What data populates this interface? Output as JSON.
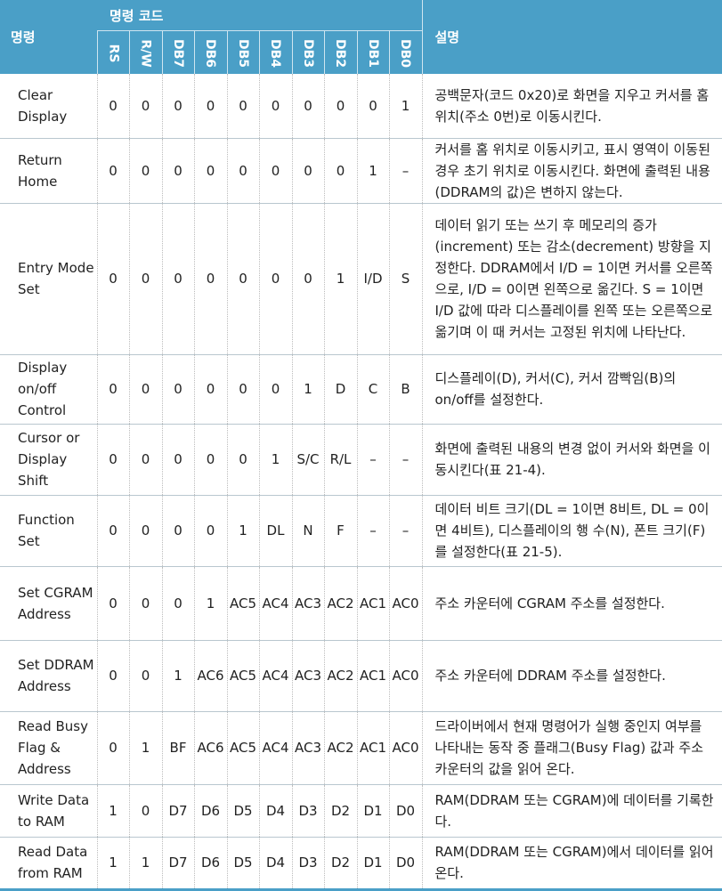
{
  "header": {
    "command": "명령",
    "code": "명령 코드",
    "description": "설명",
    "bits": [
      "RS",
      "R/W",
      "DB7",
      "DB6",
      "DB5",
      "DB4",
      "DB3",
      "DB2",
      "DB1",
      "DB0"
    ]
  },
  "rows": [
    {
      "name": "Clear Display",
      "bits": [
        "0",
        "0",
        "0",
        "0",
        "0",
        "0",
        "0",
        "0",
        "0",
        "1"
      ],
      "desc": "공백문자(코드 0x20)로 화면을 지우고 커서를 홈 위치(주소 0번)로 이동시킨다."
    },
    {
      "name": "Return Home",
      "bits": [
        "0",
        "0",
        "0",
        "0",
        "0",
        "0",
        "0",
        "0",
        "1",
        "–"
      ],
      "desc": "커서를 홈 위치로 이동시키고, 표시 영역이 이동된 경우 초기 위치로 이동시킨다. 화면에 출력된 내용(DDRAM의 값)은 변하지 않는다."
    },
    {
      "name": "Entry Mode Set",
      "bits": [
        "0",
        "0",
        "0",
        "0",
        "0",
        "0",
        "0",
        "1",
        "I/D",
        "S"
      ],
      "desc": "데이터 읽기 또는 쓰기 후 메모리의 증가(increment) 또는 감소(decrement) 방향을 지정한다. DDRAM에서 I/D = 1이면 커서를 오른쪽으로, I/D = 0이면 왼쪽으로 옮긴다. S = 1이면 I/D 값에 따라 디스플레이를 왼쪽 또는 오른쪽으로 옮기며 이 때 커서는 고정된 위치에 나타난다."
    },
    {
      "name": "Display on/off Control",
      "bits": [
        "0",
        "0",
        "0",
        "0",
        "0",
        "0",
        "1",
        "D",
        "C",
        "B"
      ],
      "desc": "디스플레이(D), 커서(C), 커서 깜빡임(B)의 on/off를 설정한다."
    },
    {
      "name": "Cursor or Display Shift",
      "bits": [
        "0",
        "0",
        "0",
        "0",
        "0",
        "1",
        "S/C",
        "R/L",
        "–",
        "–"
      ],
      "desc": "화면에 출력된 내용의 변경 없이 커서와 화면을 이동시킨다(표 21-4)."
    },
    {
      "name": "Function Set",
      "bits": [
        "0",
        "0",
        "0",
        "0",
        "1",
        "DL",
        "N",
        "F",
        "–",
        "–"
      ],
      "desc": "데이터 비트 크기(DL = 1이면 8비트, DL = 0이면 4비트), 디스플레이의 행 수(N), 폰트 크기(F)를 설정한다(표 21-5)."
    },
    {
      "name": "Set CGRAM Address",
      "bits": [
        "0",
        "0",
        "0",
        "1",
        "AC5",
        "AC4",
        "AC3",
        "AC2",
        "AC1",
        "AC0"
      ],
      "desc": "주소 카운터에 CGRAM 주소를 설정한다."
    },
    {
      "name": "Set DDRAM Address",
      "bits": [
        "0",
        "0",
        "1",
        "AC6",
        "AC5",
        "AC4",
        "AC3",
        "AC2",
        "AC1",
        "AC0"
      ],
      "desc": "주소 카운터에 DDRAM 주소를 설정한다."
    },
    {
      "name": "Read Busy Flag & Address",
      "bits": [
        "0",
        "1",
        "BF",
        "AC6",
        "AC5",
        "AC4",
        "AC3",
        "AC2",
        "AC1",
        "AC0"
      ],
      "desc": "드라이버에서 현재 명령어가 실행 중인지 여부를 나타내는 동작 중 플래그(Busy Flag) 값과 주소 카운터의 값을 읽어 온다."
    },
    {
      "name": "Write Data to RAM",
      "bits": [
        "1",
        "0",
        "D7",
        "D6",
        "D5",
        "D4",
        "D3",
        "D2",
        "D1",
        "D0"
      ],
      "desc": "RAM(DDRAM 또는 CGRAM)에 데이터를 기록한다."
    },
    {
      "name": "Read Data from RAM",
      "bits": [
        "1",
        "1",
        "D7",
        "D6",
        "D5",
        "D4",
        "D3",
        "D2",
        "D1",
        "D0"
      ],
      "desc": "RAM(DDRAM 또는 CGRAM)에서 데이터를 읽어 온다."
    }
  ]
}
